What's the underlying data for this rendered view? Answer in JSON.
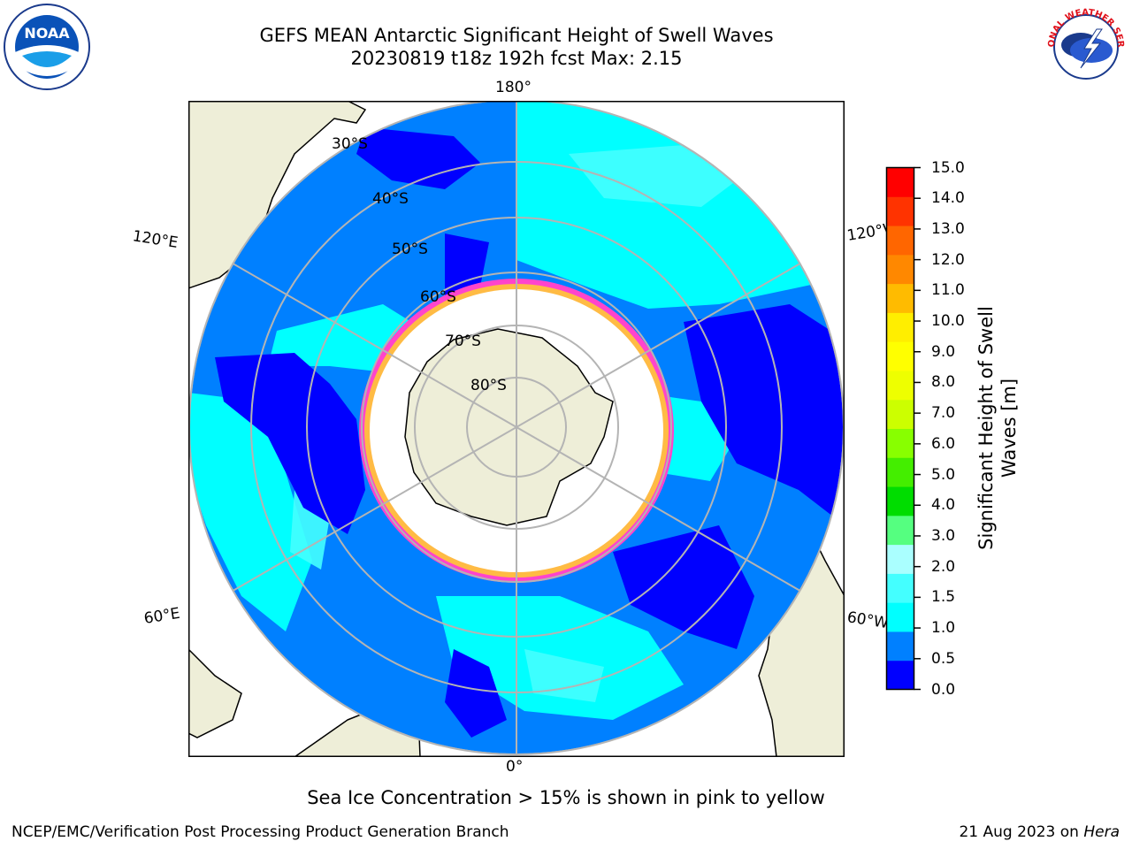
{
  "title": {
    "line1": "GEFS MEAN Antarctic Significant Height of Swell Waves",
    "line2": "20230819 t18z 192h fcst   Max: 2.15"
  },
  "map": {
    "projection": "south-polar-stereographic",
    "longitude_labels": {
      "top": "180°",
      "bottom": "0°",
      "upper_left": "120°E",
      "upper_right": "120°W",
      "lower_left": "60°E",
      "lower_right": "60°W"
    },
    "latitude_labels": [
      "30°S",
      "40°S",
      "50°S",
      "60°S",
      "70°S",
      "80°S"
    ],
    "colors": {
      "land": "#eeeed8",
      "ice_free_interior": "#ffffff",
      "ice_edge": "#ff44cc",
      "grid": "#b4b4b4"
    }
  },
  "colorbar": {
    "label": "Significant Height of Swell Waves [m]",
    "ticks": [
      "15.0",
      "14.0",
      "13.0",
      "12.0",
      "11.0",
      "10.0",
      "9.0",
      "8.0",
      "7.0",
      "6.0",
      "5.0",
      "4.0",
      "3.0",
      "2.0",
      "1.5",
      "1.0",
      "0.5",
      "0.0"
    ],
    "colors_bottom_to_top": [
      "#0000ff",
      "#0080ff",
      "#00ffff",
      "#44ffff",
      "#aaffff",
      "#55ff80",
      "#00dd00",
      "#44ee00",
      "#88ff00",
      "#ccff00",
      "#eeff00",
      "#ffff00",
      "#ffee00",
      "#ffbb00",
      "#ff8800",
      "#ff6600",
      "#ff3300",
      "#ff0000"
    ]
  },
  "note": "Sea Ice Concentration > 15% is shown in pink to yellow",
  "footer": {
    "left": "NCEP/EMC/Verification Post Processing Product Generation Branch",
    "right_date": "21 Aug 2023 on ",
    "right_machine": "Hera"
  },
  "logos": {
    "noaa_text": "NOAA",
    "nws_text": "NATIONAL WEATHER SERVICE"
  }
}
